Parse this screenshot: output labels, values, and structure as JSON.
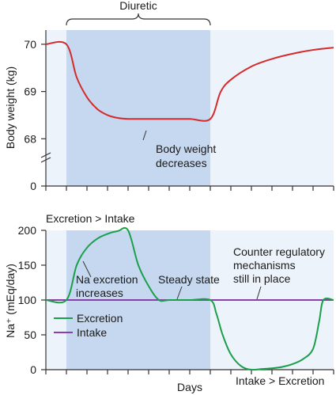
{
  "chart_data": [
    {
      "type": "line",
      "title": "",
      "xlabel": "",
      "ylabel": "Body weight (kg)",
      "ylim": [
        67,
        70.3
      ],
      "yaxis_break": true,
      "y_tick_values": [
        68,
        69,
        70
      ],
      "y_tick_labels": [
        "68",
        "69",
        "70"
      ],
      "y_zero_label": "0",
      "x_ticks": [
        0,
        1,
        2,
        3,
        4,
        5,
        6,
        7,
        8,
        9,
        10,
        11,
        12,
        13,
        14
      ],
      "xlim": [
        0,
        14
      ],
      "shaded_region": {
        "label": "Diuretic",
        "x_start": 1,
        "x_end": 8
      },
      "series": [
        {
          "color": "#d42a2a",
          "x": [
            0,
            1,
            1.5,
            2,
            2.5,
            3,
            3.5,
            4,
            5,
            6,
            7,
            8,
            8.5,
            9,
            10,
            11,
            12,
            13,
            14
          ],
          "y": [
            70,
            70,
            69.3,
            68.88,
            68.63,
            68.5,
            68.44,
            68.42,
            68.42,
            68.42,
            68.42,
            68.42,
            68.99,
            69.25,
            69.53,
            69.69,
            69.8,
            69.88,
            69.93
          ]
        }
      ],
      "annotations": [
        {
          "text_lines": [
            "Body weight",
            "decreases"
          ]
        }
      ]
    },
    {
      "type": "line",
      "title": "",
      "xlabel": "Days",
      "ylabel": "Na⁺ (mEq/day)",
      "ylim": [
        0,
        200
      ],
      "y_tick_values": [
        0,
        50,
        100,
        150,
        200
      ],
      "y_tick_labels": [
        "0",
        "50",
        "100",
        "150",
        "200"
      ],
      "x_ticks": [
        0,
        1,
        2,
        3,
        4,
        5,
        6,
        7,
        8,
        9,
        10,
        11,
        12,
        13,
        14
      ],
      "xlim": [
        0,
        14
      ],
      "shaded_region": {
        "x_start": 1,
        "x_end": 8
      },
      "legend_position": "center-left",
      "series": [
        {
          "name": "Excretion",
          "color": "#1aa04a",
          "x": [
            0,
            1,
            1.5,
            2,
            2.5,
            3,
            3.5,
            4,
            4.5,
            5,
            5.5,
            6,
            7,
            8,
            8.3,
            8.6,
            9,
            9.5,
            10,
            10.5,
            11,
            11.5,
            12,
            12.5,
            13,
            13.3,
            13.5,
            14
          ],
          "y": [
            100,
            100,
            150,
            175,
            188,
            195,
            199,
            200,
            150,
            120,
            100,
            100,
            100,
            100,
            80,
            50,
            22,
            5,
            0,
            1,
            2,
            4,
            8,
            15,
            30,
            70,
            100,
            100
          ]
        },
        {
          "name": "Intake",
          "color": "#8b3fa8",
          "x": [
            0,
            14
          ],
          "y": [
            100,
            100
          ]
        }
      ],
      "annotations": [
        {
          "text_lines": [
            "Na excretion",
            "increases"
          ]
        },
        {
          "text_lines": [
            "Steady state"
          ]
        },
        {
          "text_lines": [
            "Counter regulatory",
            "mechanisms",
            "still in place"
          ]
        },
        {
          "text_lines": [
            "Excretion > Intake"
          ]
        },
        {
          "text_lines": [
            "Intake > Excretion"
          ]
        }
      ]
    }
  ]
}
